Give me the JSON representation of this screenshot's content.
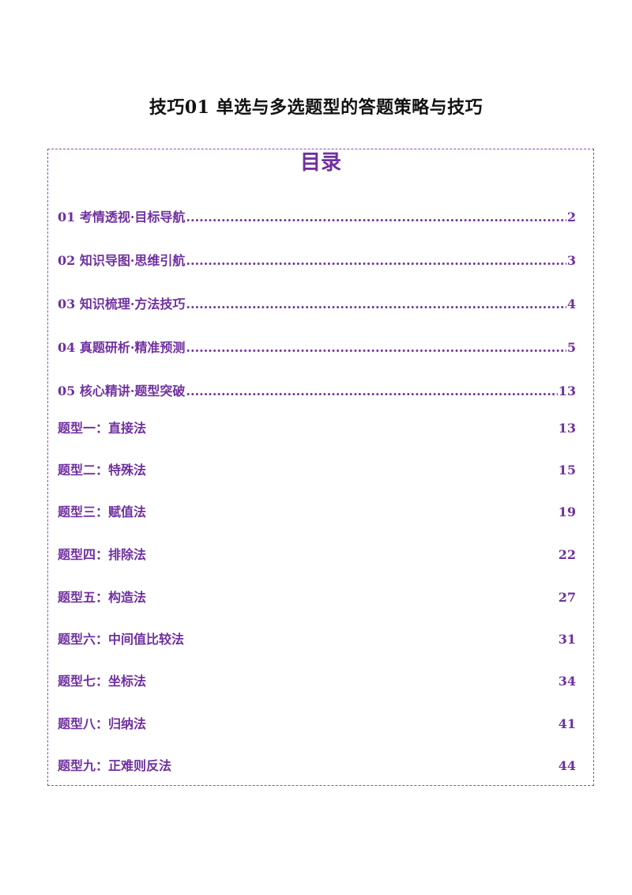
{
  "document": {
    "title": "技巧01  单选与多选题型的答题策略与技巧"
  },
  "toc": {
    "heading": "目录",
    "entries": [
      {
        "label": "01 考情透视·目标导航",
        "page": "2"
      },
      {
        "label": "02 知识导图·思维引航",
        "page": "3"
      },
      {
        "label": "03  知识梳理·方法技巧",
        "page": "4"
      },
      {
        "label": "04  真题研析·精准预测",
        "page": "5"
      },
      {
        "label": "05  核心精讲·题型突破",
        "page": "13"
      },
      {
        "label": "题型一：直接法",
        "page": "13"
      },
      {
        "label": "题型二：特殊法",
        "page": "15"
      },
      {
        "label": "题型三：赋值法",
        "page": "19"
      },
      {
        "label": "题型四：排除法",
        "page": "22"
      },
      {
        "label": "题型五：构造法",
        "page": "27"
      },
      {
        "label": "题型六：中间值比较法",
        "page": "31"
      },
      {
        "label": "题型七：坐标法",
        "page": "34"
      },
      {
        "label": "题型八：归纳法",
        "page": "41"
      },
      {
        "label": "题型九：正难则反法",
        "page": "44"
      }
    ]
  },
  "colors": {
    "accent": "#7030a0",
    "title_text": "#111111",
    "border": "#8a4fb0"
  }
}
